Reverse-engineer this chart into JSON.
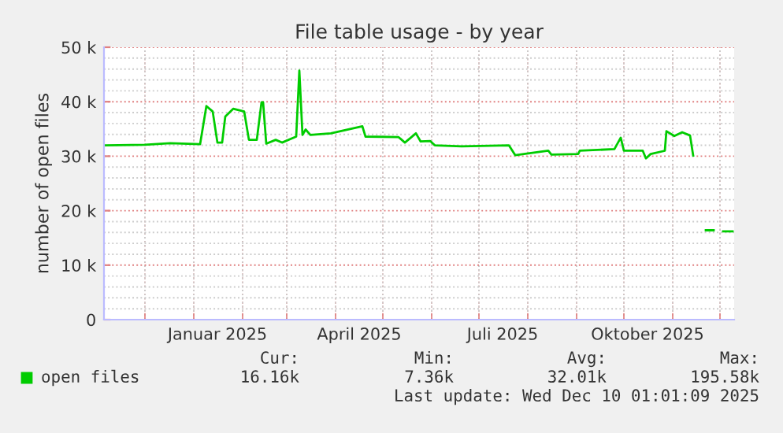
{
  "chart_data": {
    "type": "line",
    "title": "File table usage - by year",
    "ylabel": "number of open files",
    "x": [
      "2024-11-06",
      "2024-12-01",
      "2024-12-17",
      "2025-01-05",
      "2025-01-09",
      "2025-01-13",
      "2025-01-16",
      "2025-01-19",
      "2025-01-21",
      "2025-01-26",
      "2025-02-02",
      "2025-02-05",
      "2025-02-10",
      "2025-02-13",
      "2025-02-14",
      "2025-02-16",
      "2025-02-22",
      "2025-02-26",
      "2025-03-07",
      "2025-03-09",
      "2025-03-11",
      "2025-03-13",
      "2025-03-16",
      "2025-03-29",
      "2025-04-18",
      "2025-04-20",
      "2025-05-11",
      "2025-05-15",
      "2025-05-22",
      "2025-05-25",
      "2025-05-31",
      "2025-06-03",
      "2025-06-20",
      "2025-07-20",
      "2025-07-24",
      "2025-08-14",
      "2025-08-16",
      "2025-09-02",
      "2025-09-03",
      "2025-09-25",
      "2025-09-29",
      "2025-10-01",
      "2025-10-13",
      "2025-10-15",
      "2025-10-18",
      "2025-10-27",
      "2025-10-28",
      "2025-11-02",
      "2025-11-07",
      "2025-11-12",
      "2025-11-14",
      "2025-11-18",
      "2025-11-22",
      "2025-11-27",
      "2025-11-29",
      "2025-12-03",
      "2025-12-09"
    ],
    "series": [
      {
        "name": "open files",
        "color": "#00cc00",
        "values": [
          32000,
          32100,
          32400,
          32200,
          39200,
          38200,
          32500,
          32500,
          37300,
          38700,
          38200,
          33000,
          33000,
          39900,
          39900,
          32300,
          33000,
          32500,
          33600,
          45700,
          33900,
          34900,
          33900,
          34200,
          35500,
          33600,
          33500,
          32500,
          34200,
          32700,
          32800,
          32000,
          31800,
          32000,
          30200,
          31000,
          30300,
          30400,
          31000,
          31300,
          33400,
          31000,
          31000,
          29600,
          30400,
          31000,
          34600,
          33700,
          34400,
          33800,
          30100,
          null,
          16400,
          16400,
          null,
          16200,
          16200
        ]
      }
    ],
    "xlim": [
      "2024-11-05",
      "2025-12-10"
    ],
    "xticks": [
      {
        "value": "2024-12-01",
        "label": null
      },
      {
        "value": "2025-01-01",
        "label": null
      },
      {
        "value": "2025-01-16",
        "label": "Januar 2025"
      },
      {
        "value": "2025-02-01",
        "label": null
      },
      {
        "value": "2025-03-01",
        "label": null
      },
      {
        "value": "2025-04-01",
        "label": null
      },
      {
        "value": "2025-04-16",
        "label": "April 2025"
      },
      {
        "value": "2025-05-01",
        "label": null
      },
      {
        "value": "2025-06-01",
        "label": null
      },
      {
        "value": "2025-07-01",
        "label": null
      },
      {
        "value": "2025-07-16",
        "label": "Juli 2025"
      },
      {
        "value": "2025-08-01",
        "label": null
      },
      {
        "value": "2025-09-01",
        "label": null
      },
      {
        "value": "2025-10-01",
        "label": null
      },
      {
        "value": "2025-10-16",
        "label": "Oktober 2025"
      },
      {
        "value": "2025-11-01",
        "label": null
      },
      {
        "value": "2025-12-01",
        "label": null
      }
    ],
    "ylim": [
      0,
      50000
    ],
    "yticks": [
      {
        "value": 0,
        "label": "0"
      },
      {
        "value": 2000,
        "label": null
      },
      {
        "value": 4000,
        "label": null
      },
      {
        "value": 6000,
        "label": null
      },
      {
        "value": 8000,
        "label": null
      },
      {
        "value": 10000,
        "label": "10 k"
      },
      {
        "value": 12000,
        "label": null
      },
      {
        "value": 14000,
        "label": null
      },
      {
        "value": 16000,
        "label": null
      },
      {
        "value": 18000,
        "label": null
      },
      {
        "value": 20000,
        "label": "20 k"
      },
      {
        "value": 22000,
        "label": null
      },
      {
        "value": 24000,
        "label": null
      },
      {
        "value": 26000,
        "label": null
      },
      {
        "value": 28000,
        "label": null
      },
      {
        "value": 30000,
        "label": "30 k"
      },
      {
        "value": 32000,
        "label": null
      },
      {
        "value": 34000,
        "label": null
      },
      {
        "value": 36000,
        "label": null
      },
      {
        "value": 38000,
        "label": null
      },
      {
        "value": 40000,
        "label": "40 k"
      },
      {
        "value": 42000,
        "label": null
      },
      {
        "value": 44000,
        "label": null
      },
      {
        "value": 46000,
        "label": null
      },
      {
        "value": 48000,
        "label": null
      },
      {
        "value": 50000,
        "label": "50 k"
      }
    ],
    "grid": true,
    "legend": "bottom left",
    "annotations": [
      "Cur:",
      "Min:",
      "Avg:",
      "Max:",
      "16.16k",
      "7.36k",
      "32.01k",
      "195.58k",
      "Last update: Wed Dec 10 01:01:09 2025"
    ]
  }
}
